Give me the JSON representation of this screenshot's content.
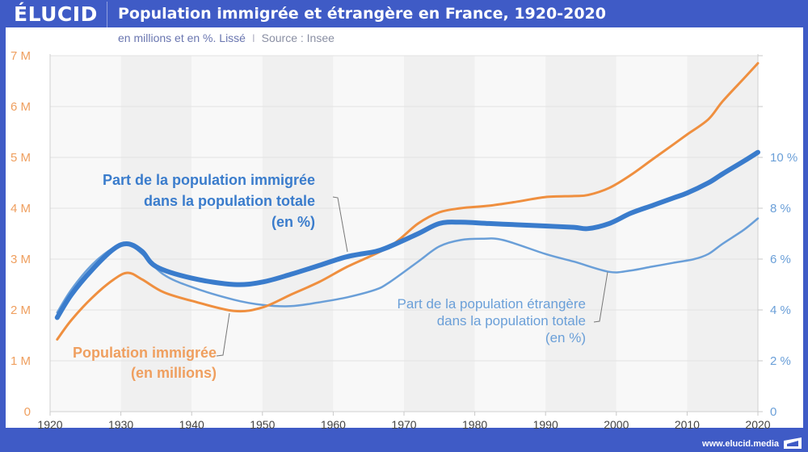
{
  "header": {
    "logo": "ÉLUCID",
    "title": "Population immigrée et étrangère en France, 1920-2020"
  },
  "subtitle": {
    "text": "en millions et en %. Lissé",
    "separator": "I",
    "source": "Source : Insee"
  },
  "footer": {
    "url": "www.elucid.media"
  },
  "colors": {
    "brand": "#3f5bc6",
    "immigrants_count": "#ef8f3f",
    "immigrants_share": "#3a7ccc",
    "foreigners_share": "#6a9fd8"
  },
  "chart_data": {
    "type": "line",
    "title": "Population immigrée et étrangère en France, 1920-2020",
    "subtitle": "en millions et en %. Lissé | Source : Insee",
    "xlabel": "",
    "xlim": [
      1920,
      2020
    ],
    "x_ticks": [
      "1920",
      "1930",
      "1940",
      "1950",
      "1960",
      "1970",
      "1980",
      "1990",
      "2000",
      "2010",
      "2020"
    ],
    "y_left": {
      "label": "millions",
      "ylim": [
        0,
        7
      ],
      "ticks": [
        "0",
        "1 M",
        "2 M",
        "3 M",
        "4 M",
        "5 M",
        "6 M",
        "7 M"
      ]
    },
    "y_right": {
      "label": "%",
      "ylim": [
        0,
        14
      ],
      "ticks": [
        "0",
        "2 %",
        "4 %",
        "6 %",
        "8 %",
        "10 %"
      ]
    },
    "grid": true,
    "alternating_decade_bands": true,
    "series": [
      {
        "name": "Population immigrée (en millions)",
        "label_lines": [
          "Population immigrée",
          "(en millions)"
        ],
        "axis": "left",
        "x": [
          1921,
          1923,
          1926,
          1929,
          1931,
          1933,
          1936,
          1940,
          1946,
          1950,
          1954,
          1958,
          1962,
          1968,
          1972,
          1975,
          1978,
          1982,
          1986,
          1990,
          1994,
          1996,
          1999,
          2002,
          2005,
          2008,
          2010,
          2013,
          2015,
          2018,
          2020
        ],
        "values": [
          1.42,
          1.8,
          2.25,
          2.6,
          2.73,
          2.6,
          2.35,
          2.18,
          1.98,
          2.05,
          2.3,
          2.55,
          2.85,
          3.25,
          3.7,
          3.92,
          4.0,
          4.05,
          4.13,
          4.22,
          4.24,
          4.26,
          4.4,
          4.65,
          4.95,
          5.25,
          5.45,
          5.75,
          6.1,
          6.55,
          6.85
        ]
      },
      {
        "name": "Part de la population immigrée dans la population totale (en %)",
        "label_lines": [
          "Part de la population immigrée",
          "dans la population totale",
          "(en %)"
        ],
        "axis": "right",
        "x": [
          1921,
          1923,
          1926,
          1929,
          1931,
          1933,
          1935,
          1940,
          1946,
          1950,
          1954,
          1958,
          1962,
          1966,
          1968,
          1972,
          1975,
          1978,
          1982,
          1986,
          1990,
          1994,
          1996,
          1999,
          2002,
          2005,
          2008,
          2010,
          2013,
          2015,
          2018,
          2020
        ],
        "values": [
          3.7,
          4.6,
          5.6,
          6.4,
          6.6,
          6.3,
          5.7,
          5.25,
          5.0,
          5.1,
          5.4,
          5.75,
          6.1,
          6.3,
          6.5,
          7.0,
          7.4,
          7.45,
          7.4,
          7.35,
          7.3,
          7.25,
          7.2,
          7.4,
          7.8,
          8.1,
          8.4,
          8.6,
          9.0,
          9.35,
          9.85,
          10.2
        ]
      },
      {
        "name": "Part de la population étrangère dans la population totale (en %)",
        "label_lines": [
          "Part de la population étrangère",
          "dans la population totale",
          "(en %)"
        ],
        "axis": "right",
        "x": [
          1921,
          1923,
          1926,
          1929,
          1931,
          1933,
          1936,
          1940,
          1946,
          1950,
          1954,
          1958,
          1962,
          1966,
          1968,
          1972,
          1975,
          1978,
          1981,
          1984,
          1990,
          1994,
          1999,
          2002,
          2005,
          2008,
          2011,
          2013,
          2015,
          2018,
          2020
        ],
        "values": [
          3.9,
          4.8,
          5.8,
          6.45,
          6.6,
          6.2,
          5.4,
          4.9,
          4.4,
          4.2,
          4.15,
          4.3,
          4.5,
          4.8,
          5.1,
          5.9,
          6.5,
          6.75,
          6.8,
          6.75,
          6.2,
          5.9,
          5.5,
          5.55,
          5.7,
          5.85,
          6.0,
          6.2,
          6.6,
          7.15,
          7.6
        ]
      }
    ]
  }
}
